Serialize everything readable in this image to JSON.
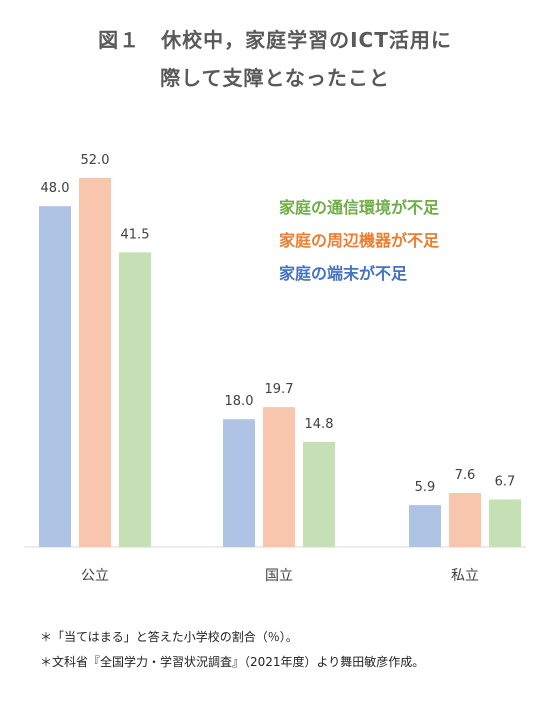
{
  "title_line1": "図１　休校中，家庭学習のICT活用に",
  "title_line2": "際して支障となったこと",
  "colors": {
    "端末": "#AFC3E5",
    "周辺機器": "#F7C6AC",
    "通信環境": "#C5E0B5",
    "legend_端末": "#4472C4",
    "legend_周辺機器": "#ED7D31",
    "legend_通信環境": "#70AD47"
  },
  "legend": [
    {
      "label": "家庭の通信環境が不足",
      "color": "#70AD47"
    },
    {
      "label": "家庭の周辺機器が不足",
      "color": "#ED7D31"
    },
    {
      "label": "家庭の端末が不足",
      "color": "#4472C4"
    }
  ],
  "notes": [
    "＊「当てはまる」と答えた小学校の割合（％）。",
    "＊文科省『全国学力・学習状況調査』（2021年度）より舞田敏彦作成。"
  ],
  "chart_data": {
    "type": "bar",
    "categories": [
      "公立",
      "国立",
      "私立"
    ],
    "series": [
      {
        "name": "家庭の端末が不足",
        "values": [
          48.0,
          18.0,
          5.9
        ]
      },
      {
        "name": "家庭の周辺機器が不足",
        "values": [
          52.0,
          19.7,
          7.6
        ]
      },
      {
        "name": "家庭の通信環境が不足",
        "values": [
          41.5,
          14.8,
          6.7
        ]
      }
    ],
    "ylim": [
      0,
      60
    ],
    "grid": false,
    "legend_position": "top-right"
  }
}
